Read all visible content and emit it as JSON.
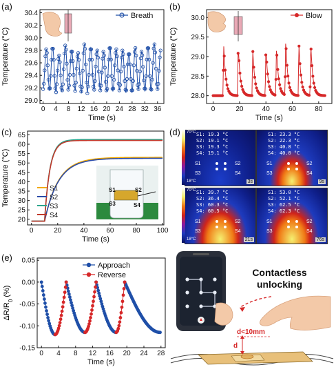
{
  "panels": {
    "a": {
      "label": "(a)",
      "legend": "Breath",
      "xlabel": "Time (s)",
      "ylabel": "Temperature (°C)",
      "xticks": [
        "0",
        "4",
        "8",
        "12",
        "16",
        "20",
        "24",
        "28",
        "32",
        "36"
      ],
      "yticks": [
        "29.0",
        "29.2",
        "29.4",
        "29.6",
        "29.8",
        "30.0",
        "30.2",
        "30.4"
      ]
    },
    "b": {
      "label": "(b)",
      "legend": "Blow",
      "xlabel": "Time (s)",
      "ylabel": "Temperature (°C)",
      "xticks": [
        "0",
        "20",
        "40",
        "60",
        "80"
      ],
      "yticks": [
        "28.0",
        "28.5",
        "29.0",
        "29.5",
        "30.0"
      ]
    },
    "c": {
      "label": "(c)",
      "xlabel": "Time (s)",
      "ylabel": "Temperature (°C)",
      "xticks": [
        "0",
        "20",
        "40",
        "60",
        "80",
        "100"
      ],
      "yticks": [
        "20",
        "25",
        "30",
        "35",
        "40",
        "45",
        "50",
        "55",
        "60",
        "65"
      ],
      "legend": [
        "S1",
        "S2",
        "S3",
        "S4"
      ],
      "inset_labels": [
        "S1",
        "S2",
        "S3",
        "S4"
      ]
    },
    "d": {
      "label": "(d)",
      "scale_max": "70°C",
      "scale_min": "18°C",
      "frames": [
        {
          "lines": [
            "S1: 19.3 °C",
            "S2: 19.1 °C",
            "S3: 19.3 °C",
            "S4: 19.1 °C"
          ],
          "time": "3s"
        },
        {
          "lines": [
            "S1: 23.3 °C",
            "S2: 22.3 °C",
            "S3: 40.8 °C",
            "S4: 40.0 °C"
          ],
          "time": "9s"
        },
        {
          "lines": [
            "S1: 39.7 °C",
            "S2: 36.4 °C",
            "S3: 60.3 °C",
            "S4: 60.5 °C"
          ],
          "time": "21s"
        },
        {
          "lines": [
            "S1: 53.0 °C",
            "S2: 52.1 °C",
            "S3: 62.5 °C",
            "S4: 62.3 °C"
          ],
          "time": "76s"
        }
      ],
      "sensor_labels": [
        "S1",
        "S2",
        "S3",
        "S4"
      ]
    },
    "e": {
      "label": "(e)",
      "xlabel": "Time (s)",
      "ylabel": "ΔR/R",
      "ylabel_sub": "0",
      "ylabel_unit": " (%)",
      "legend": [
        "Approach",
        "Reverse"
      ],
      "xticks": [
        "0",
        "4",
        "8",
        "12",
        "16",
        "20",
        "24",
        "28"
      ],
      "yticks": [
        "0.05",
        "0.00",
        "-0.05",
        "-0.10",
        "-0.15"
      ]
    },
    "f": {
      "title_line1": "Contactless",
      "title_line2": "unlocking",
      "distance": "d<10mm",
      "d": "d"
    }
  },
  "colors": {
    "blue": "#1f4fa8",
    "red": "#d62728",
    "S1": "#f2a900",
    "S2": "#2b4ba8",
    "S3": "#2ca58d",
    "S4": "#c0392b"
  },
  "chart_data": [
    {
      "type": "line",
      "title": "",
      "xlabel": "Time (s)",
      "ylabel": "Temperature (°C)",
      "xlim": [
        -1,
        38
      ],
      "ylim": [
        28.95,
        30.45
      ],
      "series": [
        {
          "name": "Breath",
          "pattern": "periodic",
          "period_s": 2.0,
          "peak_range": [
            29.72,
            29.92
          ],
          "trough_range": [
            29.1,
            29.22
          ],
          "t_start": 0,
          "t_end": 37
        }
      ]
    },
    {
      "type": "line",
      "title": "",
      "xlabel": "Time (s)",
      "ylabel": "Temperature (°C)",
      "xlim": [
        -5,
        90
      ],
      "ylim": [
        27.8,
        30.2
      ],
      "series": [
        {
          "name": "Blow",
          "baseline": 28.0,
          "peaks": [
            [
              8,
              29.3
            ],
            [
              19,
              29.3
            ],
            [
              30,
              29.2
            ],
            [
              40,
              29.25
            ],
            [
              48,
              29.25
            ],
            [
              55,
              29.45
            ],
            [
              65,
              29.35
            ],
            [
              74,
              29.35
            ]
          ]
        }
      ]
    },
    {
      "type": "line",
      "title": "",
      "xlabel": "Time (s)",
      "ylabel": "Temperature (°C)",
      "xlim": [
        -3,
        101
      ],
      "ylim": [
        17,
        67
      ],
      "series": [
        {
          "name": "S1",
          "start": 19,
          "t_rise": 10,
          "plateau": 53.0
        },
        {
          "name": "S2",
          "start": 19,
          "t_rise": 10,
          "plateau": 52.5
        },
        {
          "name": "S3",
          "start": 19,
          "t_rise": 10,
          "plateau": 62.5
        },
        {
          "name": "S4",
          "start": 19,
          "t_rise": 10,
          "plateau": 62.0
        }
      ]
    },
    {
      "type": "line",
      "title": "",
      "xlabel": "Time (s)",
      "ylabel": "ΔR/R0 (%)",
      "xlim": [
        -1,
        29
      ],
      "ylim": [
        -0.15,
        0.055
      ],
      "series": [
        {
          "name": "Approach",
          "segments": [
            [
              0,
              0.0,
              3.2,
              -0.12
            ],
            [
              5.8,
              0.0,
              10.2,
              -0.115
            ],
            [
              12.8,
              0.0,
              17.5,
              -0.115
            ],
            [
              19.5,
              0.0,
              27.8,
              -0.115
            ]
          ]
        },
        {
          "name": "Reverse",
          "segments": [
            [
              3.2,
              -0.12,
              5.8,
              0.0
            ],
            [
              10.2,
              -0.115,
              12.8,
              0.0
            ],
            [
              17.5,
              -0.115,
              19.5,
              0.0
            ]
          ]
        }
      ]
    }
  ]
}
